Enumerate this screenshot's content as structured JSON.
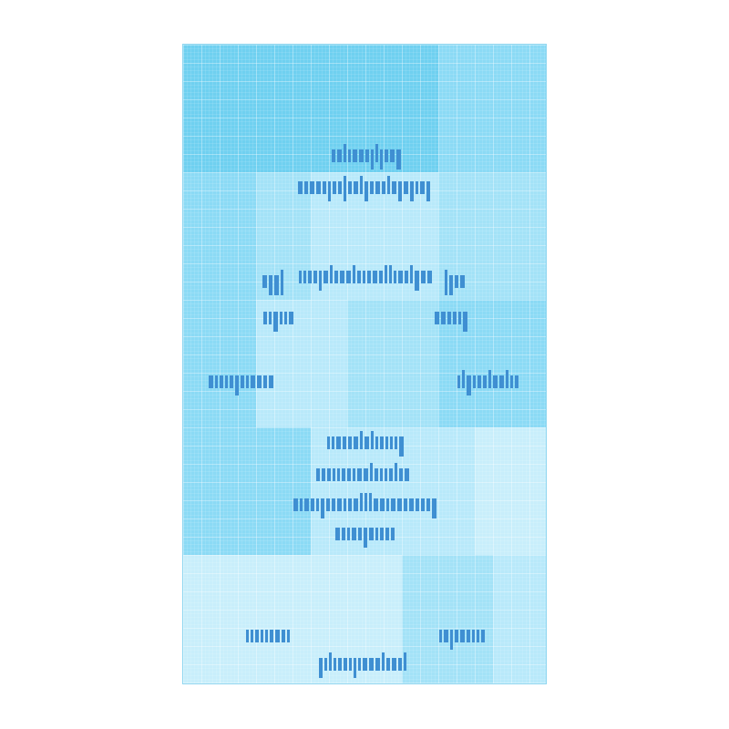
{
  "canvas": {
    "background": "#ffffff",
    "panel_border": "#8fd6f0",
    "text_color": "#3f8fd2"
  },
  "palette": [
    "#6fd0f0",
    "#8bdaf5",
    "#a3e2f7",
    "#b8e9fa",
    "#c8eefb"
  ],
  "illegible_text_note_visible": false
}
